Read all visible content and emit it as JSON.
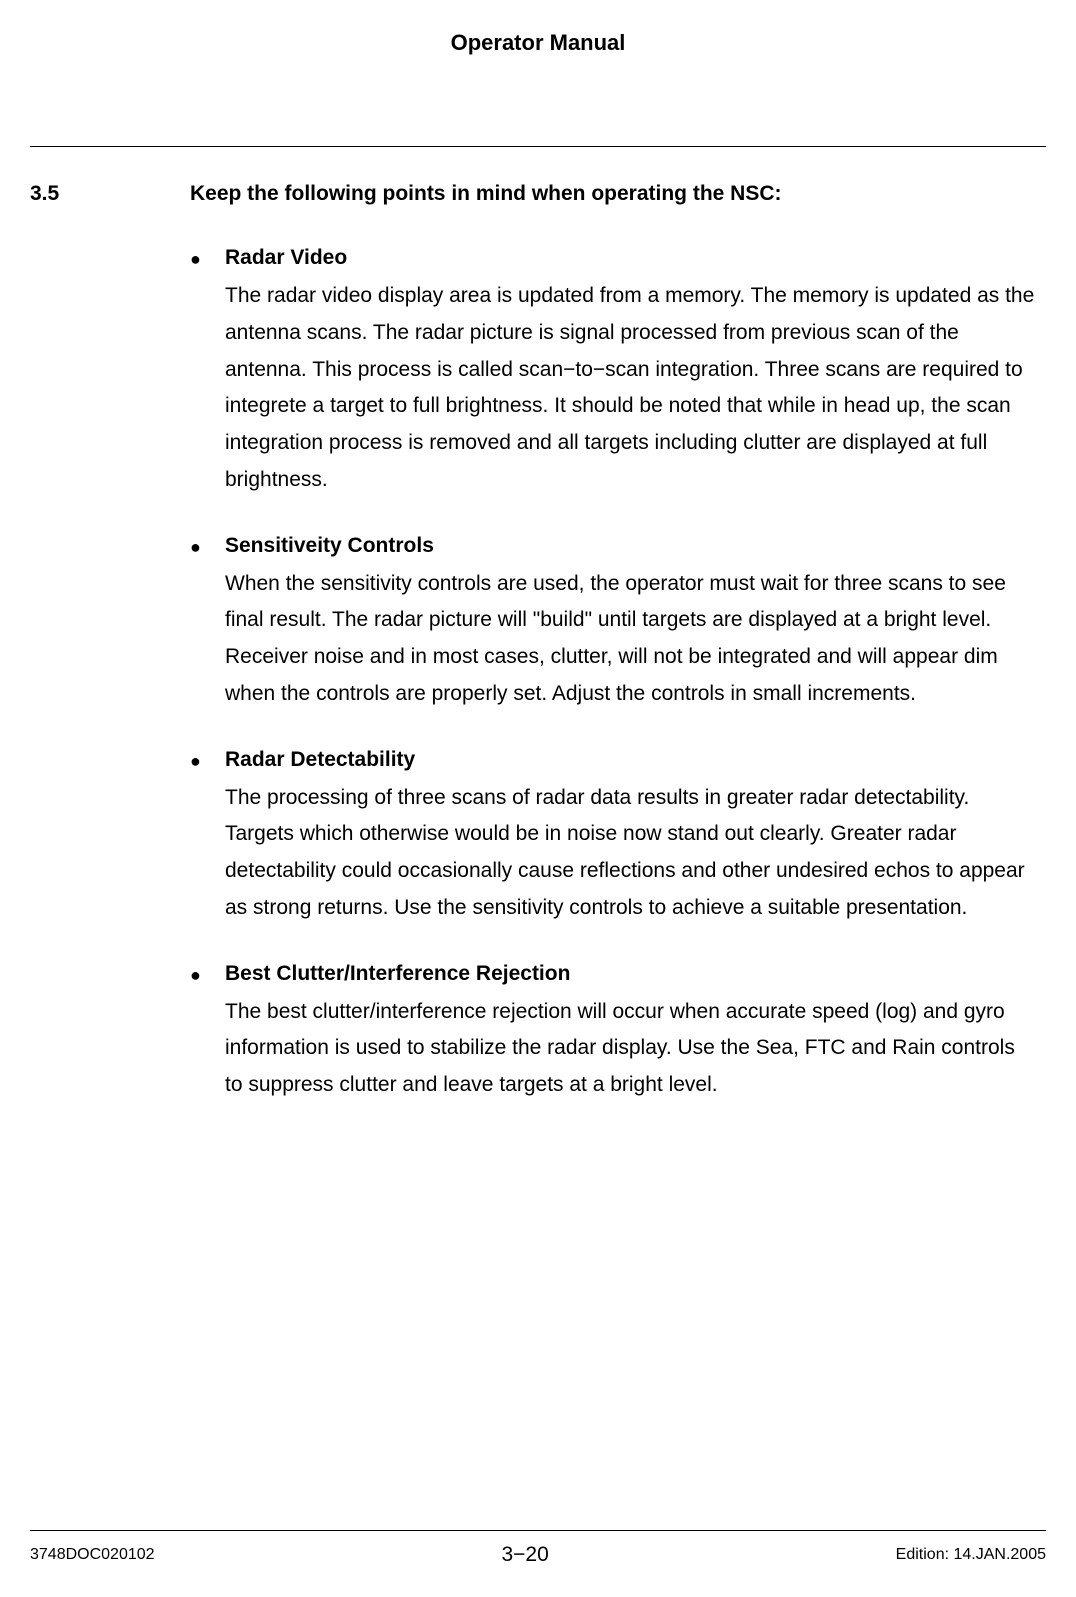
{
  "header": {
    "title": "Operator Manual"
  },
  "section": {
    "number": "3.5",
    "title": "Keep the following points in mind when operating the NSC:"
  },
  "bullets": [
    {
      "heading": "Radar Video",
      "text": "The radar video display area is updated from a memory. The memory is updated as the antenna scans. The radar picture is signal processed from previous scan of the antenna. This process is called scan−to−scan integration.  Three scans are required to integrete a target to full brightness. It should be noted that while in head up, the scan integration process is removed and all targets including clutter are displayed at full brightness."
    },
    {
      "heading": "Sensitiveity Controls",
      "text": "When the sensitivity controls are used, the operator must wait for three scans to see final result. The radar picture will \"build\" until targets are displayed at a bright level. Receiver noise and in most cases, clutter, will not be integrated and will appear dim when the controls are properly set. Adjust the controls in small increments."
    },
    {
      "heading": "Radar Detectability",
      "text": "The processing of three scans of radar data results in greater radar detectability. Targets which otherwise would be in noise now stand out clearly. Greater radar detectability could occasionally cause reflections and other undesired echos to appear as strong returns. Use the sensitivity controls to achieve a suitable presentation."
    },
    {
      "heading": "Best Clutter/Interference Rejection",
      "text": "The best clutter/interference rejection will occur when accurate speed (log) and gyro information is used to stabilize the radar display. Use the Sea, FTC and Rain controls to suppress clutter and leave targets at a bright level."
    }
  ],
  "footer": {
    "left": "3748DOC020102",
    "center": "3−20",
    "right": "Edition: 14.JAN.2005"
  },
  "styling": {
    "background_color": "#ffffff",
    "text_color": "#000000",
    "divider_color": "#000000",
    "body_font_size": 21,
    "footer_small_font_size": 16,
    "line_height": 1.75
  }
}
